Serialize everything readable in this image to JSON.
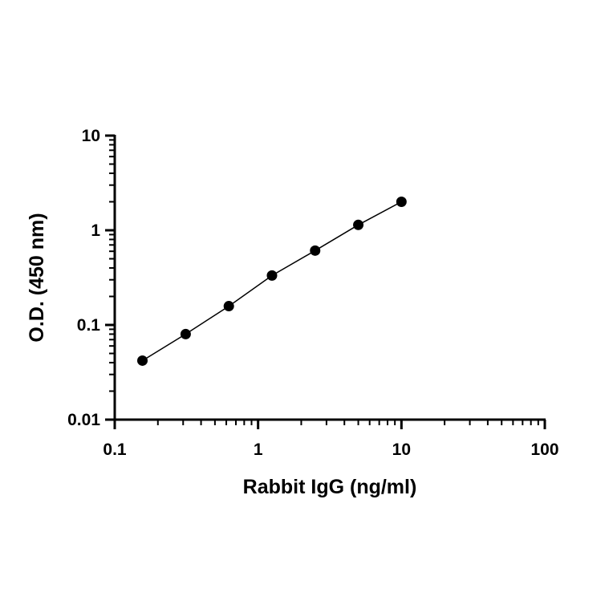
{
  "chart_data": {
    "type": "line",
    "title": "",
    "xlabel": "Rabbit IgG (ng/ml)",
    "ylabel": "O.D. (450 nm)",
    "xscale": "log",
    "yscale": "log",
    "xlim": [
      0.1,
      100
    ],
    "ylim": [
      0.01,
      10
    ],
    "x_ticks": [
      0.1,
      1,
      10,
      100
    ],
    "x_tick_labels": [
      "0.1",
      "1",
      "10",
      "100"
    ],
    "y_ticks": [
      0.01,
      0.1,
      1,
      10
    ],
    "y_tick_labels": [
      "0.01",
      "0.1",
      "1",
      "10"
    ],
    "grid": false,
    "legend": "none",
    "series": [
      {
        "x": [
          0.156,
          0.3125,
          0.625,
          1.25,
          2.5,
          5,
          10
        ],
        "y": [
          0.042,
          0.08,
          0.158,
          0.333,
          0.61,
          1.14,
          2.0
        ],
        "marker": "circle",
        "color": "#000000"
      }
    ]
  }
}
